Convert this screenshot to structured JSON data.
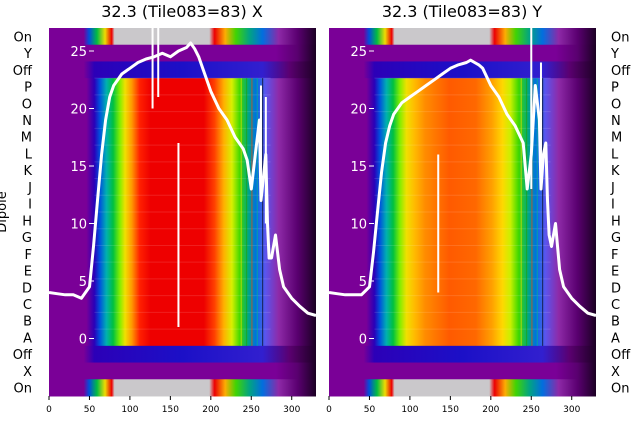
{
  "chart_data": {
    "type": "heatmap",
    "ylabel": "Dipole",
    "row_labels_top_to_bottom": [
      "On",
      "Y",
      "Off",
      "P",
      "O",
      "N",
      "M",
      "L",
      "K",
      "J",
      "I",
      "H",
      "G",
      "F",
      "E",
      "D",
      "C",
      "B",
      "A",
      "Off",
      "X",
      "On"
    ],
    "x_ticks": [
      "0",
      "50",
      "100",
      "150",
      "200",
      "250",
      "300"
    ],
    "xlim": [
      0,
      330
    ],
    "overlay_ticks": [
      "25",
      "20",
      "15",
      "10",
      "5",
      "0"
    ],
    "overlay_ylim": [
      -5,
      27
    ],
    "colormap": "nipy_spectral",
    "panels": [
      {
        "title": "32.3 (Tile083=83) X",
        "curve": {
          "x": [
            0,
            10,
            20,
            30,
            40,
            50,
            55,
            60,
            65,
            70,
            75,
            80,
            85,
            90,
            100,
            110,
            120,
            130,
            140,
            150,
            160,
            170,
            175,
            180,
            185,
            190,
            200,
            210,
            220,
            230,
            240,
            245,
            250,
            255,
            260,
            262,
            265,
            268,
            270,
            272,
            275,
            280,
            285,
            290,
            300,
            310,
            320,
            330
          ],
          "y": [
            4,
            3.9,
            3.8,
            3.8,
            3.5,
            4.5,
            8,
            12,
            16,
            19,
            21,
            22,
            22.5,
            23,
            23.5,
            24,
            24.3,
            24.5,
            24.8,
            24.5,
            25,
            25.3,
            25.7,
            25.2,
            24.5,
            23.5,
            21.5,
            20,
            19,
            17.5,
            16.5,
            15.5,
            13,
            16,
            19,
            12,
            14,
            16,
            10,
            7,
            7,
            9,
            6,
            4.5,
            3.5,
            2.8,
            2.2,
            2
          ]
        },
        "spikes": [
          {
            "x": 128,
            "y_from": 20,
            "y_to": 32
          },
          {
            "x": 135,
            "y_from": 21,
            "y_to": 31
          },
          {
            "x": 160,
            "y_from": 1,
            "y_to": 17
          },
          {
            "x": 262,
            "y_from": 12,
            "y_to": 22
          },
          {
            "x": 268,
            "y_from": 10,
            "y_to": 21
          }
        ]
      },
      {
        "title": "32.3 (Tile083=83) Y",
        "curve": {
          "x": [
            0,
            10,
            20,
            30,
            40,
            50,
            55,
            60,
            65,
            70,
            75,
            80,
            85,
            90,
            100,
            110,
            120,
            130,
            140,
            150,
            160,
            170,
            175,
            180,
            185,
            190,
            200,
            210,
            220,
            230,
            240,
            245,
            250,
            255,
            260,
            262,
            265,
            268,
            270,
            272,
            275,
            280,
            285,
            290,
            300,
            310,
            320,
            330
          ],
          "y": [
            4,
            3.9,
            3.8,
            3.8,
            3.8,
            4.5,
            7.5,
            11,
            14.5,
            17,
            18.5,
            19.5,
            20,
            20.5,
            21,
            21.5,
            22,
            22.5,
            23,
            23.5,
            23.8,
            24,
            24.2,
            24,
            23.8,
            23.5,
            22,
            21,
            19.5,
            18.5,
            17,
            13,
            16,
            22,
            19,
            13,
            16,
            17,
            12,
            9,
            8,
            10,
            6,
            4.5,
            3.5,
            2.8,
            2.2,
            2
          ]
        },
        "spikes": [
          {
            "x": 135,
            "y_from": 4,
            "y_to": 16
          },
          {
            "x": 250,
            "y_from": 13,
            "y_to": 27
          },
          {
            "x": 262,
            "y_from": 14,
            "y_to": 24
          }
        ]
      }
    ]
  }
}
